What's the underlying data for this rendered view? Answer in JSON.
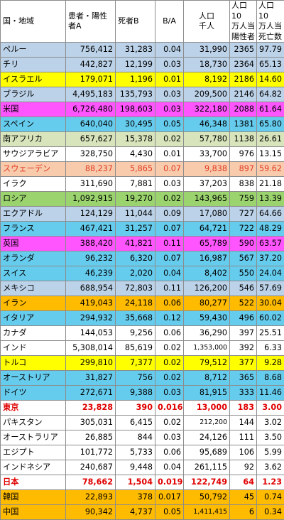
{
  "chart_data": {
    "type": "table",
    "columns": [
      "国・地域",
      "患者・陽性者A",
      "死者B",
      "B/A",
      "人口千人",
      "人口10万人当陽性者",
      "人口10万人当死亡数"
    ],
    "header_lines": [
      [
        "国・地域"
      ],
      [
        "患者・陽性",
        "者A"
      ],
      [
        "死者B"
      ],
      [
        "B/A"
      ],
      [
        "人口",
        "千人"
      ],
      [
        "人口10",
        "万人当",
        "陽性者"
      ],
      [
        "人口10",
        "万人当",
        "死亡数"
      ]
    ],
    "row_colors": {
      "blue": "#bcd2e8",
      "yellow": "#ffff00",
      "magenta": "#ff55ff",
      "cyan": "#66ccee",
      "lightgreen": "#d8e4bc",
      "salmon": "#f8cbad",
      "green": "#9bd36e",
      "orange": "#ffbb00",
      "white": "#ffffff",
      "red_text": "#e00000"
    },
    "rows": [
      {
        "country": "ペルー",
        "cases": "756,412",
        "deaths": "31,283",
        "ratio": "0.04",
        "pop": "31,990",
        "cases_per_100k": "2365",
        "deaths_per_100k": "97.79",
        "style": "blue"
      },
      {
        "country": "チリ",
        "cases": "442,827",
        "deaths": "12,199",
        "ratio": "0.03",
        "pop": "18,730",
        "cases_per_100k": "2364",
        "deaths_per_100k": "65.13",
        "style": "blue"
      },
      {
        "country": "イスラエル",
        "cases": "179,071",
        "deaths": "1,196",
        "ratio": "0.01",
        "pop": "8,192",
        "cases_per_100k": "2186",
        "deaths_per_100k": "14.60",
        "style": "yellow"
      },
      {
        "country": "ブラジル",
        "cases": "4,495,183",
        "deaths": "135,793",
        "ratio": "0.03",
        "pop": "209,500",
        "cases_per_100k": "2146",
        "deaths_per_100k": "64.82",
        "style": "blue"
      },
      {
        "country": "米国",
        "cases": "6,726,480",
        "deaths": "198,603",
        "ratio": "0.03",
        "pop": "322,180",
        "cases_per_100k": "2088",
        "deaths_per_100k": "61.64",
        "style": "magenta"
      },
      {
        "country": "スペイン",
        "cases": "640,040",
        "deaths": "30,495",
        "ratio": "0.05",
        "pop": "46,348",
        "cases_per_100k": "1381",
        "deaths_per_100k": "65.80",
        "style": "cyan"
      },
      {
        "country": "南アフリカ",
        "cases": "657,627",
        "deaths": "15,378",
        "ratio": "0.02",
        "pop": "57,780",
        "cases_per_100k": "1138",
        "deaths_per_100k": "26.61",
        "style": "lightgreen"
      },
      {
        "country": "サウジアラビア",
        "cases": "328,750",
        "deaths": "4,430",
        "ratio": "0.01",
        "pop": "33,700",
        "cases_per_100k": "976",
        "deaths_per_100k": "13.15",
        "style": "white"
      },
      {
        "country": "スウェーデン",
        "cases": "88,237",
        "deaths": "5,865",
        "ratio": "0.07",
        "pop": "9,838",
        "cases_per_100k": "897",
        "deaths_per_100k": "59.62",
        "style": "salmon"
      },
      {
        "country": "イラク",
        "cases": "311,690",
        "deaths": "7,881",
        "ratio": "0.03",
        "pop": "37,203",
        "cases_per_100k": "838",
        "deaths_per_100k": "21.18",
        "style": "white"
      },
      {
        "country": "ロシア",
        "cases": "1,092,915",
        "deaths": "19,270",
        "ratio": "0.02",
        "pop": "143,965",
        "cases_per_100k": "759",
        "deaths_per_100k": "13.39",
        "style": "green"
      },
      {
        "country": "エクアドル",
        "cases": "124,129",
        "deaths": "11,044",
        "ratio": "0.09",
        "pop": "17,080",
        "cases_per_100k": "727",
        "deaths_per_100k": "64.66",
        "style": "blue"
      },
      {
        "country": "フランス",
        "cases": "467,421",
        "deaths": "31,257",
        "ratio": "0.07",
        "pop": "64,721",
        "cases_per_100k": "722",
        "deaths_per_100k": "48.29",
        "style": "cyan"
      },
      {
        "country": "英国",
        "cases": "388,420",
        "deaths": "41,821",
        "ratio": "0.11",
        "pop": "65,789",
        "cases_per_100k": "590",
        "deaths_per_100k": "63.57",
        "style": "magenta"
      },
      {
        "country": "オランダ",
        "cases": "96,232",
        "deaths": "6,320",
        "ratio": "0.07",
        "pop": "16,987",
        "cases_per_100k": "567",
        "deaths_per_100k": "37.20",
        "style": "cyan"
      },
      {
        "country": "スイス",
        "cases": "46,239",
        "deaths": "2,020",
        "ratio": "0.04",
        "pop": "8,402",
        "cases_per_100k": "550",
        "deaths_per_100k": "24.04",
        "style": "cyan"
      },
      {
        "country": "メキシコ",
        "cases": "688,954",
        "deaths": "72,803",
        "ratio": "0.11",
        "pop": "126,200",
        "cases_per_100k": "546",
        "deaths_per_100k": "57.69",
        "style": "blue"
      },
      {
        "country": "イラン",
        "cases": "419,043",
        "deaths": "24,118",
        "ratio": "0.06",
        "pop": "80,277",
        "cases_per_100k": "522",
        "deaths_per_100k": "30.04",
        "style": "orange"
      },
      {
        "country": "イタリア",
        "cases": "294,932",
        "deaths": "35,668",
        "ratio": "0.12",
        "pop": "59,430",
        "cases_per_100k": "496",
        "deaths_per_100k": "60.02",
        "style": "cyan"
      },
      {
        "country": "カナダ",
        "cases": "144,053",
        "deaths": "9,256",
        "ratio": "0.06",
        "pop": "36,290",
        "cases_per_100k": "397",
        "deaths_per_100k": "25.51",
        "style": "white"
      },
      {
        "country": "インド",
        "cases": "5,308,014",
        "deaths": "85,619",
        "ratio": "0.02",
        "pop": "1,353,000",
        "cases_per_100k": "392",
        "deaths_per_100k": "6.33",
        "style": "white",
        "small_pop": true
      },
      {
        "country": "トルコ",
        "cases": "299,810",
        "deaths": "7,377",
        "ratio": "0.02",
        "pop": "79,512",
        "cases_per_100k": "377",
        "deaths_per_100k": "9.28",
        "style": "yellow"
      },
      {
        "country": "オーストリア",
        "cases": "31,827",
        "deaths": "756",
        "ratio": "0.02",
        "pop": "8,712",
        "cases_per_100k": "365",
        "deaths_per_100k": "8.68",
        "style": "cyan"
      },
      {
        "country": "ドイツ",
        "cases": "272,671",
        "deaths": "9,388",
        "ratio": "0.03",
        "pop": "81,915",
        "cases_per_100k": "333",
        "deaths_per_100k": "11.46",
        "style": "cyan"
      },
      {
        "country": "東京",
        "cases": "23,828",
        "deaths": "390",
        "ratio": "0.016",
        "pop": "13,000",
        "cases_per_100k": "183",
        "deaths_per_100k": "3.00",
        "style": "redbold"
      },
      {
        "country": "パキスタン",
        "cases": "305,031",
        "deaths": "6,415",
        "ratio": "0.02",
        "pop": "212,200",
        "cases_per_100k": "144",
        "deaths_per_100k": "3.02",
        "style": "white",
        "small_pop": true
      },
      {
        "country": "オーストラリア",
        "cases": "26,885",
        "deaths": "844",
        "ratio": "0.03",
        "pop": "24,126",
        "cases_per_100k": "111",
        "deaths_per_100k": "3.50",
        "style": "white"
      },
      {
        "country": "エジプト",
        "cases": "101,772",
        "deaths": "5,733",
        "ratio": "0.06",
        "pop": "95,689",
        "cases_per_100k": "106",
        "deaths_per_100k": "5.99",
        "style": "white"
      },
      {
        "country": "インドネシア",
        "cases": "240,687",
        "deaths": "9,448",
        "ratio": "0.04",
        "pop": "261,115",
        "cases_per_100k": "92",
        "deaths_per_100k": "3.62",
        "style": "white"
      },
      {
        "country": "日本",
        "cases": "78,662",
        "deaths": "1,504",
        "ratio": "0.019",
        "pop": "122,749",
        "cases_per_100k": "64",
        "deaths_per_100k": "1.23",
        "style": "redbold"
      },
      {
        "country": "韓国",
        "cases": "22,893",
        "deaths": "378",
        "ratio": "0.017",
        "pop": "50,792",
        "cases_per_100k": "45",
        "deaths_per_100k": "0.74",
        "style": "orange"
      },
      {
        "country": "中国",
        "cases": "90,342",
        "deaths": "4,737",
        "ratio": "0.05",
        "pop": "1,411,415",
        "cases_per_100k": "6",
        "deaths_per_100k": "0.34",
        "style": "orange",
        "small_pop": true
      }
    ]
  }
}
